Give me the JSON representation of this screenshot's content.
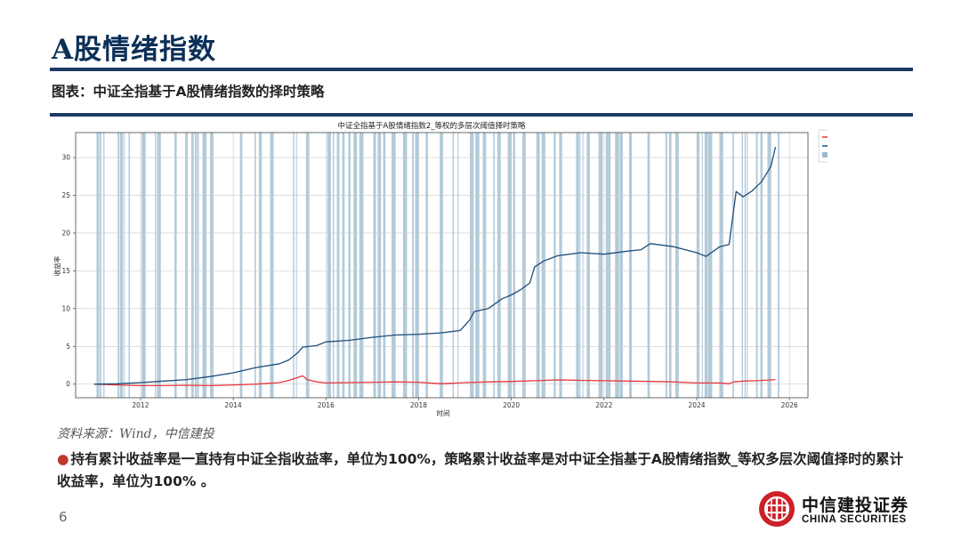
{
  "header": {
    "title": "A股情绪指数",
    "figure_caption": "图表：中证全指基于A股情绪指数的择时策略"
  },
  "chart_data": {
    "type": "line",
    "title": "中证全指基于A股情绪指数2_等权的多层次阈值择时策略",
    "xlabel": "时间",
    "ylabel": "收益率",
    "xlim": [
      2010.6,
      2026.4
    ],
    "ylim": [
      -1.8,
      33.3
    ],
    "x_ticks": [
      "2012",
      "2014",
      "2016",
      "2018",
      "2020",
      "2022",
      "2024",
      "2026"
    ],
    "y_ticks": [
      "0",
      "5",
      "10",
      "15",
      "20",
      "25",
      "30"
    ],
    "grid": true,
    "legend_position": "top-right",
    "series": [
      {
        "name": "持有累积收益率",
        "color": "#e8383d",
        "x": [
          2011.0,
          2011.5,
          2012.0,
          2012.5,
          2013.0,
          2013.5,
          2014.0,
          2014.5,
          2015.0,
          2015.2,
          2015.4,
          2015.5,
          2015.6,
          2015.8,
          2016.0,
          2016.5,
          2017.0,
          2017.5,
          2018.0,
          2018.5,
          2019.0,
          2019.5,
          2020.0,
          2020.5,
          2021.0,
          2021.5,
          2022.0,
          2022.5,
          2023.0,
          2023.5,
          2024.0,
          2024.5,
          2024.7,
          2024.8,
          2025.0,
          2025.3,
          2025.7
        ],
        "y": [
          0.0,
          -0.1,
          -0.2,
          -0.2,
          -0.15,
          -0.2,
          -0.1,
          0.0,
          0.2,
          0.5,
          0.9,
          1.1,
          0.6,
          0.3,
          0.15,
          0.2,
          0.25,
          0.3,
          0.25,
          0.05,
          0.2,
          0.3,
          0.35,
          0.45,
          0.55,
          0.5,
          0.45,
          0.4,
          0.35,
          0.3,
          0.15,
          0.15,
          0.05,
          0.3,
          0.4,
          0.45,
          0.6
        ]
      },
      {
        "name": "策略累积收益率",
        "color": "#1f4e79",
        "x": [
          2011.0,
          2011.5,
          2012.0,
          2012.5,
          2013.0,
          2013.5,
          2014.0,
          2014.5,
          2015.0,
          2015.2,
          2015.4,
          2015.5,
          2015.8,
          2016.0,
          2016.5,
          2017.0,
          2017.5,
          2018.0,
          2018.5,
          2018.9,
          2019.1,
          2019.2,
          2019.5,
          2019.8,
          2020.0,
          2020.2,
          2020.4,
          2020.5,
          2020.7,
          2021.0,
          2021.5,
          2022.0,
          2022.5,
          2022.8,
          2023.0,
          2023.5,
          2024.0,
          2024.2,
          2024.5,
          2024.7,
          2024.8,
          2024.85,
          2025.0,
          2025.2,
          2025.4,
          2025.6,
          2025.7
        ],
        "y": [
          0.0,
          0.05,
          0.2,
          0.4,
          0.6,
          1.0,
          1.5,
          2.2,
          2.7,
          3.2,
          4.2,
          4.9,
          5.1,
          5.6,
          5.8,
          6.2,
          6.5,
          6.6,
          6.8,
          7.1,
          8.5,
          9.6,
          10.0,
          11.3,
          11.8,
          12.5,
          13.4,
          15.5,
          16.3,
          17.0,
          17.4,
          17.2,
          17.6,
          17.8,
          18.6,
          18.2,
          17.4,
          16.9,
          18.2,
          18.5,
          23.2,
          25.5,
          24.8,
          25.6,
          26.8,
          28.8,
          31.4
        ]
      }
    ],
    "full_position_label": "满仓",
    "full_position_color": "#9ab8cc"
  },
  "footer": {
    "source": "资料来源：Wind，中信建投",
    "note": "持有累计收益率是一直持有中证全指收益率，单位为100%，策略累计收益率是对中证全指基于A股情绪指数_等权多层次阈值择时的累计收益率，单位为100% 。",
    "page_number": "6"
  },
  "logo": {
    "name_cn": "中信建投证券",
    "name_en": "CHINA SECURITIES",
    "color": "#cc2128"
  }
}
